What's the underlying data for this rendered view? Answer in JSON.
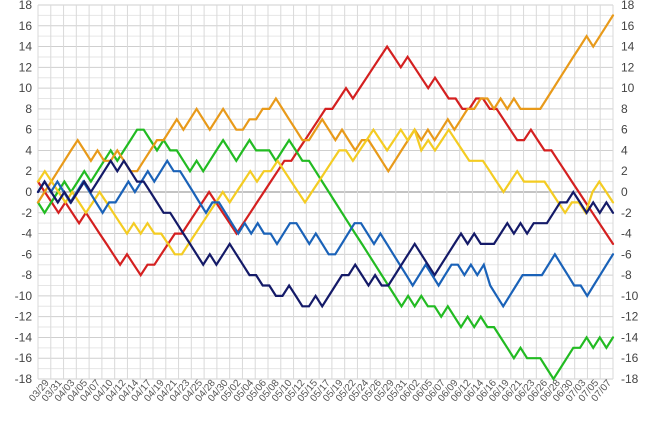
{
  "chart_data": {
    "type": "line",
    "title": "",
    "xlabel": "",
    "ylabel": "",
    "ylim": [
      -18,
      18
    ],
    "ytick_step": 2,
    "grid": true,
    "legend": "none",
    "yticks": [
      "18",
      "16",
      "14",
      "12",
      "10",
      "8",
      "6",
      "4",
      "2",
      "0",
      "-2",
      "-4",
      "-6",
      "-8",
      "-10",
      "-12",
      "-14",
      "-16",
      "-18"
    ],
    "xticks": [
      "03/29",
      "03/31",
      "04/03",
      "04/05",
      "04/07",
      "04/10",
      "04/12",
      "04/14",
      "04/17",
      "04/19",
      "04/21",
      "04/23",
      "04/25",
      "04/28",
      "04/30",
      "05/02",
      "05/04",
      "05/06",
      "05/08",
      "05/10",
      "05/12",
      "05/15",
      "05/17",
      "05/19",
      "05/22",
      "05/24",
      "05/26",
      "05/29",
      "05/31",
      "06/02",
      "06/05",
      "06/07",
      "06/09",
      "06/12",
      "06/14",
      "06/16",
      "06/19",
      "06/21",
      "06/23",
      "06/26",
      "06/28",
      "06/30",
      "07/03",
      "07/05",
      "07/07"
    ],
    "series": [
      {
        "color": "#d42020",
        "values": [
          1,
          0,
          -1,
          -2,
          -1,
          -2,
          -3,
          -2,
          -3,
          -4,
          -5,
          -6,
          -7,
          -6,
          -7,
          -8,
          -7,
          -7,
          -6,
          -5,
          -4,
          -4,
          -3,
          -2,
          -1,
          0,
          -1,
          -2,
          -3,
          -4,
          -3,
          -2,
          -1,
          0,
          1,
          2,
          3,
          3,
          4,
          5,
          6,
          7,
          8,
          8,
          9,
          10,
          9,
          10,
          11,
          12,
          13,
          14,
          13,
          12,
          13,
          12,
          11,
          10,
          11,
          10,
          9,
          9,
          8,
          8,
          9,
          9,
          8,
          8,
          7,
          6,
          5,
          5,
          6,
          5,
          4,
          4,
          3,
          2,
          1,
          0,
          -1,
          -2,
          -3,
          -4,
          -5
        ]
      },
      {
        "color": "#22bb22",
        "values": [
          -1,
          -2,
          -1,
          0,
          1,
          0,
          1,
          2,
          1,
          2,
          3,
          4,
          3,
          4,
          5,
          6,
          6,
          5,
          4,
          5,
          4,
          4,
          3,
          2,
          3,
          2,
          3,
          4,
          5,
          4,
          3,
          4,
          5,
          4,
          4,
          4,
          3,
          4,
          5,
          4,
          3,
          3,
          2,
          1,
          0,
          -1,
          -2,
          -3,
          -4,
          -5,
          -6,
          -7,
          -8,
          -9,
          -10,
          -11,
          -10,
          -11,
          -10,
          -11,
          -11,
          -12,
          -11,
          -12,
          -13,
          -12,
          -13,
          -12,
          -13,
          -13,
          -14,
          -15,
          -16,
          -15,
          -16,
          -16,
          -16,
          -17,
          -18,
          -17,
          -16,
          -15,
          -15,
          -14,
          -15,
          -14,
          -15,
          -14
        ]
      },
      {
        "color": "#e89a1a",
        "values": [
          -1,
          0,
          1,
          2,
          3,
          4,
          5,
          4,
          3,
          4,
          3,
          3,
          4,
          3,
          2,
          2,
          3,
          4,
          5,
          5,
          6,
          7,
          6,
          7,
          8,
          7,
          6,
          7,
          8,
          7,
          6,
          6,
          7,
          7,
          8,
          8,
          9,
          8,
          7,
          6,
          5,
          5,
          6,
          7,
          6,
          5,
          6,
          5,
          4,
          5,
          5,
          4,
          3,
          2,
          3,
          4,
          5,
          6,
          5,
          6,
          5,
          6,
          7,
          6,
          7,
          8,
          8,
          9,
          9,
          8,
          9,
          8,
          9,
          8,
          8,
          8,
          8,
          9,
          10,
          11,
          12,
          13,
          14,
          15,
          14,
          15,
          16,
          17
        ]
      },
      {
        "color": "#f4cc22",
        "values": [
          1,
          2,
          1,
          0,
          -1,
          0,
          -1,
          -2,
          -1,
          0,
          -1,
          -2,
          -3,
          -4,
          -3,
          -4,
          -3,
          -4,
          -4,
          -5,
          -6,
          -6,
          -5,
          -4,
          -3,
          -2,
          -1,
          0,
          -1,
          0,
          1,
          2,
          1,
          2,
          2,
          3,
          2,
          1,
          0,
          -1,
          0,
          1,
          2,
          3,
          4,
          4,
          3,
          4,
          5,
          6,
          5,
          4,
          5,
          6,
          5,
          6,
          4,
          5,
          4,
          5,
          6,
          5,
          4,
          3,
          3,
          3,
          2,
          1,
          0,
          1,
          2,
          1,
          1,
          1,
          1,
          0,
          -1,
          -2,
          -1,
          -1,
          -2,
          0,
          1,
          0,
          -1
        ]
      },
      {
        "color": "#1a62b8",
        "values": [
          0,
          1,
          0,
          1,
          0,
          -1,
          0,
          1,
          0,
          -1,
          -2,
          -1,
          -1,
          0,
          1,
          0,
          1,
          2,
          1,
          2,
          3,
          2,
          2,
          1,
          0,
          -1,
          -2,
          -1,
          -1,
          -2,
          -3,
          -4,
          -3,
          -4,
          -3,
          -4,
          -4,
          -5,
          -4,
          -3,
          -3,
          -4,
          -5,
          -4,
          -5,
          -6,
          -6,
          -5,
          -4,
          -3,
          -3,
          -4,
          -5,
          -4,
          -5,
          -6,
          -7,
          -8,
          -9,
          -8,
          -7,
          -8,
          -9,
          -8,
          -7,
          -7,
          -8,
          -7,
          -8,
          -7,
          -9,
          -10,
          -11,
          -10,
          -9,
          -8,
          -8,
          -8,
          -8,
          -7,
          -6,
          -7,
          -8,
          -9,
          -9,
          -10,
          -9,
          -8,
          -7,
          -6
        ]
      },
      {
        "color": "#141a68",
        "values": [
          0,
          1,
          0,
          -1,
          0,
          -1,
          0,
          1,
          0,
          1,
          2,
          3,
          2,
          3,
          2,
          1,
          1,
          0,
          -1,
          -2,
          -2,
          -3,
          -4,
          -5,
          -6,
          -7,
          -6,
          -7,
          -6,
          -5,
          -6,
          -7,
          -8,
          -8,
          -9,
          -9,
          -10,
          -10,
          -9,
          -10,
          -11,
          -11,
          -10,
          -11,
          -10,
          -9,
          -8,
          -8,
          -7,
          -8,
          -9,
          -8,
          -9,
          -9,
          -8,
          -7,
          -6,
          -5,
          -6,
          -7,
          -8,
          -7,
          -6,
          -5,
          -4,
          -5,
          -4,
          -5,
          -5,
          -5,
          -4,
          -3,
          -4,
          -3,
          -4,
          -3,
          -3,
          -3,
          -2,
          -1,
          -1,
          0,
          -1,
          -2,
          -1,
          -2,
          -1,
          -2
        ]
      }
    ]
  }
}
